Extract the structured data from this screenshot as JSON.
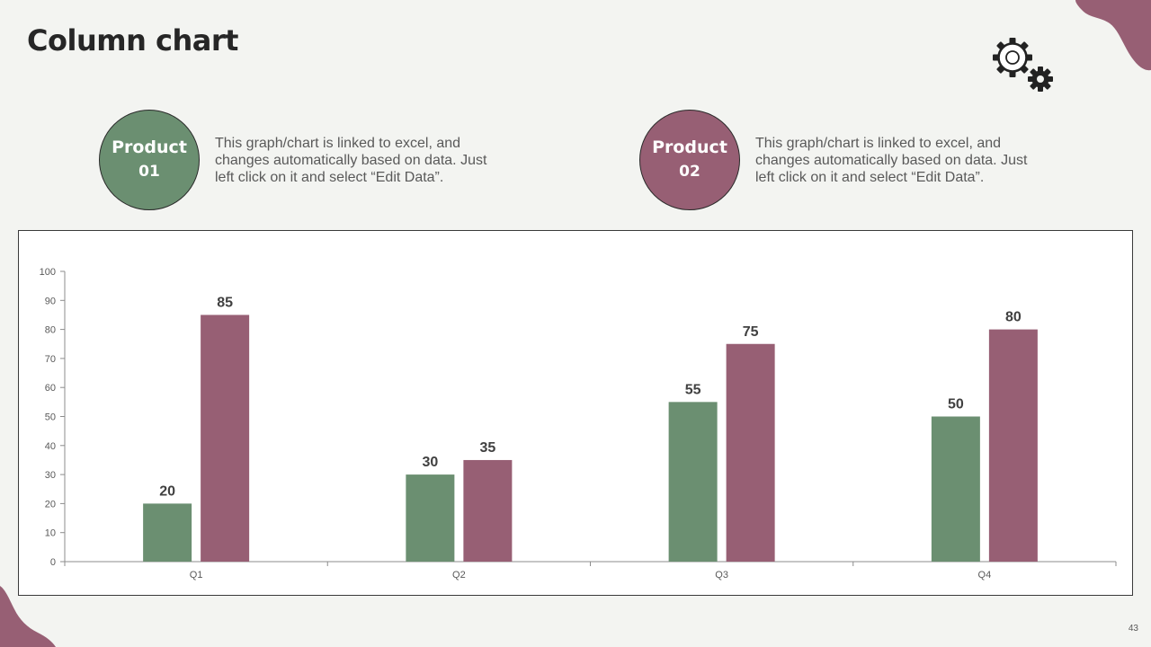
{
  "slide": {
    "title": "Column chart",
    "page_number": "43"
  },
  "products": [
    {
      "line1": "Product",
      "line2": "01",
      "color": "#6b8f71",
      "text": "This graph/chart is linked to excel, and changes automatically based on data. Just left click on it and select “Edit Data”."
    },
    {
      "line1": "Product",
      "line2": "02",
      "color": "#975f74",
      "text": "This graph/chart is linked to excel, and changes automatically based on data. Just left click on it and select “Edit Data”."
    }
  ],
  "colors": {
    "accent_green": "#6b8f71",
    "accent_plum": "#975f74",
    "background": "#f3f4f1"
  },
  "icons": [
    "gears-icon"
  ],
  "chart_data": {
    "type": "bar",
    "categories": [
      "Q1",
      "Q2",
      "Q3",
      "Q4"
    ],
    "series": [
      {
        "values": [
          20,
          30,
          55,
          50
        ],
        "color": "#6b8f71"
      },
      {
        "values": [
          85,
          35,
          75,
          80
        ],
        "color": "#975f74"
      }
    ],
    "ylim": [
      0,
      100
    ],
    "yticks": [
      0,
      10,
      20,
      30,
      40,
      50,
      60,
      70,
      80,
      90,
      100
    ],
    "data_labels": true,
    "grid": false,
    "legend": "none"
  }
}
